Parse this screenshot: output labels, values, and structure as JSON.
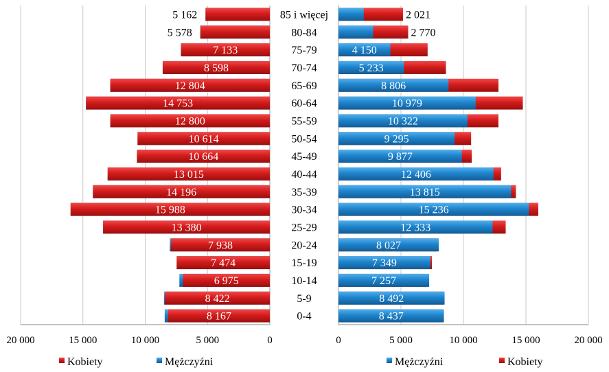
{
  "colors": {
    "kobiety": "#cc1818",
    "mezczyzni": "#1f84cc",
    "axis": "#888888"
  },
  "chart_data": {
    "type": "bar",
    "orientation": "horizontal-pyramid",
    "categories": [
      "85 i więcej",
      "80-84",
      "75-79",
      "70-74",
      "65-69",
      "60-64",
      "55-59",
      "50-54",
      "45-49",
      "40-44",
      "35-39",
      "30-34",
      "25-29",
      "20-24",
      "15-19",
      "10-14",
      "5-9",
      "0-4"
    ],
    "left_panel": {
      "xlim": [
        0,
        20000
      ],
      "ticks": [
        "20 000",
        "15 000",
        "10 000",
        "5 000",
        "0"
      ],
      "tick_values": [
        20000,
        15000,
        10000,
        5000,
        0
      ],
      "series": [
        {
          "name": "Kobiety",
          "color": "#cc1818",
          "values": [
            5162,
            5578,
            7133,
            8598,
            12804,
            14753,
            12800,
            10614,
            10664,
            13015,
            14196,
            15988,
            13380,
            7938,
            7474,
            6975,
            8422,
            8167
          ],
          "labels": [
            "5 162",
            "5 578",
            "7 133",
            "8 598",
            "12 804",
            "14 753",
            "12 800",
            "10 614",
            "10 664",
            "13 015",
            "14 196",
            "15 988",
            "13 380",
            "7 938",
            "7 474",
            "6 975",
            "8 422",
            "8 167"
          ]
        },
        {
          "name": "Mężczyźni",
          "color": "#1f84cc",
          "values": [
            5162,
            5578,
            7133,
            8598,
            12804,
            14753,
            12800,
            10614,
            10664,
            13015,
            14196,
            15988,
            13380,
            8027,
            7474,
            7257,
            8492,
            8437
          ]
        }
      ],
      "legend": [
        "Kobiety",
        "Mężczyźni"
      ],
      "legend_position": "bottom"
    },
    "right_panel": {
      "xlim": [
        0,
        20000
      ],
      "ticks": [
        "0",
        "5 000",
        "10 000",
        "15 000",
        "20 000"
      ],
      "tick_values": [
        0,
        5000,
        10000,
        15000,
        20000
      ],
      "series": [
        {
          "name": "Mężczyźni",
          "color": "#1f84cc",
          "values": [
            2021,
            2770,
            4150,
            5233,
            8806,
            10979,
            10322,
            9295,
            9877,
            12406,
            13815,
            15236,
            12333,
            8027,
            7349,
            7257,
            8492,
            8437
          ],
          "labels": [
            "2 021",
            "2 770",
            "4 150",
            "5 233",
            "8 806",
            "10 979",
            "10 322",
            "9 295",
            "9 877",
            "12 406",
            "13 815",
            "15 236",
            "12 333",
            "8 027",
            "7 349",
            "7 257",
            "8 492",
            "8 437"
          ]
        },
        {
          "name": "Kobiety",
          "color": "#cc1818",
          "values": [
            5162,
            5578,
            7133,
            8598,
            12804,
            14753,
            12800,
            10614,
            10664,
            13015,
            14196,
            15988,
            13380,
            7938,
            7474,
            6975,
            8422,
            8167
          ]
        }
      ],
      "legend": [
        "Mężczyźni",
        "Kobiety"
      ],
      "legend_position": "bottom"
    }
  }
}
